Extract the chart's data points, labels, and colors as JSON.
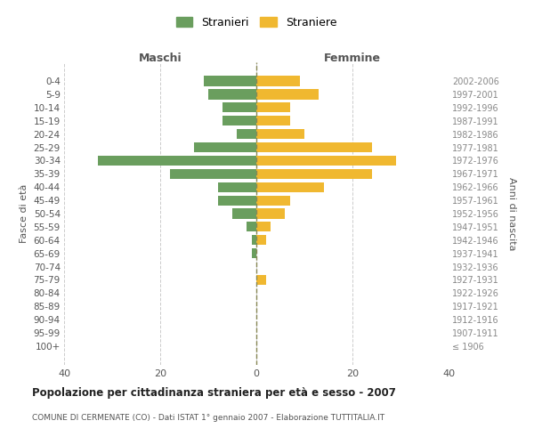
{
  "age_groups": [
    "100+",
    "95-99",
    "90-94",
    "85-89",
    "80-84",
    "75-79",
    "70-74",
    "65-69",
    "60-64",
    "55-59",
    "50-54",
    "45-49",
    "40-44",
    "35-39",
    "30-34",
    "25-29",
    "20-24",
    "15-19",
    "10-14",
    "5-9",
    "0-4"
  ],
  "birth_years": [
    "≤ 1906",
    "1907-1911",
    "1912-1916",
    "1917-1921",
    "1922-1926",
    "1927-1931",
    "1932-1936",
    "1937-1941",
    "1942-1946",
    "1947-1951",
    "1952-1956",
    "1957-1961",
    "1962-1966",
    "1967-1971",
    "1972-1976",
    "1977-1981",
    "1982-1986",
    "1987-1991",
    "1992-1996",
    "1997-2001",
    "2002-2006"
  ],
  "maschi": [
    0,
    0,
    0,
    0,
    0,
    0,
    0,
    1,
    1,
    2,
    5,
    8,
    8,
    18,
    33,
    13,
    4,
    7,
    7,
    10,
    11
  ],
  "femmine": [
    0,
    0,
    0,
    0,
    0,
    2,
    0,
    0,
    2,
    3,
    6,
    7,
    14,
    24,
    29,
    24,
    10,
    7,
    7,
    13,
    9
  ],
  "maschi_color": "#6a9e5e",
  "femmine_color": "#f0b830",
  "title": "Popolazione per cittadinanza straniera per età e sesso - 2007",
  "subtitle": "COMUNE DI CERMENATE (CO) - Dati ISTAT 1° gennaio 2007 - Elaborazione TUTTITALIA.IT",
  "xlabel_left": "Maschi",
  "xlabel_right": "Femmine",
  "ylabel_left": "Fasce di età",
  "ylabel_right": "Anni di nascita",
  "legend_maschi": "Stranieri",
  "legend_femmine": "Straniere",
  "xlim": 40,
  "background_color": "#ffffff",
  "grid_color": "#cccccc",
  "dashed_line_color": "#888855"
}
